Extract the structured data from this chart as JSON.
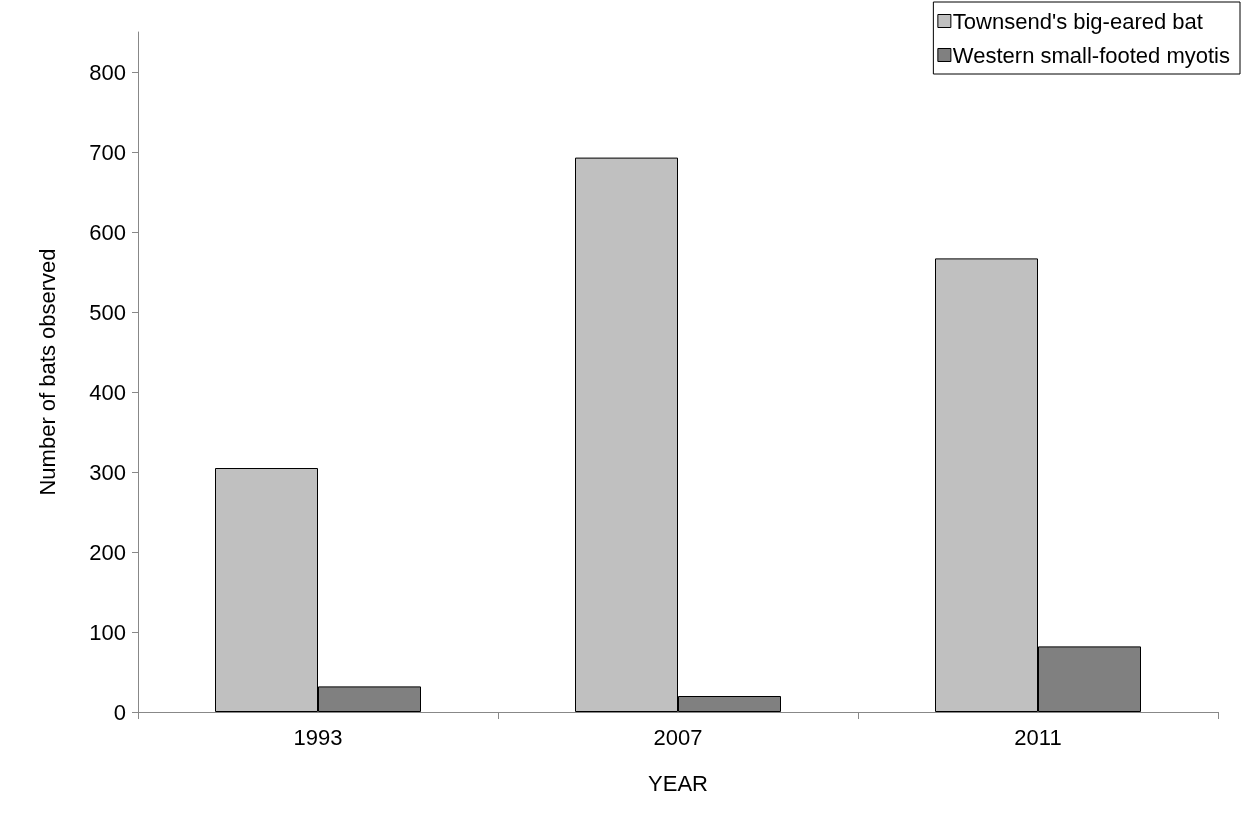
{
  "chart_data": {
    "type": "bar",
    "xlabel": "YEAR",
    "ylabel": "Number of bats observed",
    "categories": [
      "1993",
      "2007",
      "2011"
    ],
    "series": [
      {
        "name": "Townsend's big-eared bat",
        "color": "#c0c0c0",
        "values": [
          305,
          693,
          567
        ]
      },
      {
        "name": "Western small-footed myotis",
        "color": "#808080",
        "values": [
          32,
          20,
          82
        ]
      }
    ],
    "ylim": [
      0,
      850
    ],
    "yticks": [
      0,
      100,
      200,
      300,
      400,
      500,
      600,
      700,
      800
    ],
    "grid": false,
    "legend": "top right"
  }
}
